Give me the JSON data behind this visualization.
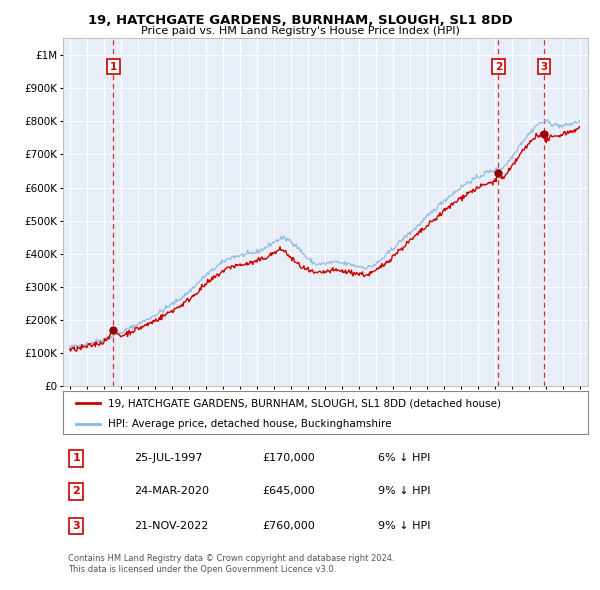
{
  "title": "19, HATCHGATE GARDENS, BURNHAM, SLOUGH, SL1 8DD",
  "subtitle": "Price paid vs. HM Land Registry's House Price Index (HPI)",
  "bg_color": "#e8eef8",
  "sale_dates_year": [
    1997.56,
    2020.23,
    2022.9
  ],
  "sale_prices": [
    170000,
    645000,
    760000
  ],
  "sale_labels": [
    "1",
    "2",
    "3"
  ],
  "footer_text": "Contains HM Land Registry data © Crown copyright and database right 2024.\nThis data is licensed under the Open Government Licence v3.0.",
  "legend_property": "19, HATCHGATE GARDENS, BURNHAM, SLOUGH, SL1 8DD (detached house)",
  "legend_hpi": "HPI: Average price, detached house, Buckinghamshire",
  "table_rows": [
    [
      "1",
      "25-JUL-1997",
      "£170,000",
      "6% ↓ HPI"
    ],
    [
      "2",
      "24-MAR-2020",
      "£645,000",
      "9% ↓ HPI"
    ],
    [
      "3",
      "21-NOV-2022",
      "£760,000",
      "9% ↓ HPI"
    ]
  ],
  "hpi_control_years": [
    1995,
    1995.5,
    1996,
    1996.5,
    1997,
    1997.5,
    1998,
    1998.5,
    1999,
    1999.5,
    2000,
    2000.5,
    2001,
    2001.5,
    2002,
    2002.5,
    2003,
    2003.5,
    2004,
    2004.5,
    2005,
    2005.5,
    2006,
    2006.5,
    2007,
    2007.5,
    2008,
    2008.5,
    2009,
    2009.5,
    2010,
    2010.5,
    2011,
    2011.5,
    2012,
    2012.5,
    2013,
    2013.5,
    2014,
    2014.5,
    2015,
    2015.5,
    2016,
    2016.5,
    2017,
    2017.5,
    2018,
    2018.5,
    2019,
    2019.5,
    2020,
    2020.5,
    2021,
    2021.5,
    2022,
    2022.5,
    2023,
    2023.5,
    2024,
    2024.5,
    2025
  ],
  "hpi_control_vals": [
    118000,
    122000,
    128000,
    135000,
    142000,
    152000,
    162000,
    175000,
    188000,
    200000,
    215000,
    230000,
    248000,
    265000,
    285000,
    310000,
    335000,
    355000,
    375000,
    390000,
    395000,
    398000,
    405000,
    418000,
    435000,
    448000,
    440000,
    415000,
    385000,
    368000,
    370000,
    375000,
    372000,
    368000,
    362000,
    358000,
    368000,
    390000,
    415000,
    440000,
    462000,
    485000,
    510000,
    535000,
    560000,
    580000,
    600000,
    618000,
    630000,
    645000,
    652000,
    660000,
    690000,
    730000,
    760000,
    790000,
    800000,
    790000,
    785000,
    792000,
    800000
  ],
  "prop_control_years": [
    1995,
    1995.5,
    1996,
    1996.5,
    1997,
    1997.56,
    1998,
    1998.5,
    1999,
    1999.5,
    2000,
    2000.5,
    2001,
    2001.5,
    2002,
    2002.5,
    2003,
    2003.5,
    2004,
    2004.5,
    2005,
    2005.5,
    2006,
    2006.5,
    2007,
    2007.5,
    2008,
    2008.5,
    2009,
    2009.5,
    2010,
    2010.5,
    2011,
    2011.5,
    2012,
    2012.5,
    2013,
    2013.5,
    2014,
    2014.5,
    2015,
    2015.5,
    2016,
    2016.5,
    2017,
    2017.5,
    2018,
    2018.5,
    2019,
    2019.5,
    2020,
    2020.23,
    2020.5,
    2021,
    2021.5,
    2022,
    2022.5,
    2022.9,
    2023,
    2023.5,
    2024,
    2024.5,
    2025
  ],
  "prop_control_vals": [
    110000,
    114000,
    120000,
    127000,
    134000,
    170000,
    152000,
    163000,
    174000,
    185000,
    198000,
    212000,
    228000,
    243000,
    262000,
    285000,
    308000,
    328000,
    348000,
    362000,
    366000,
    370000,
    377000,
    388000,
    402000,
    415000,
    388000,
    365000,
    350000,
    340000,
    345000,
    350000,
    348000,
    344000,
    340000,
    336000,
    348000,
    368000,
    392000,
    415000,
    438000,
    460000,
    482000,
    505000,
    528000,
    548000,
    568000,
    585000,
    598000,
    610000,
    618000,
    645000,
    625000,
    660000,
    700000,
    730000,
    760000,
    760000,
    745000,
    752000,
    762000,
    770000,
    778000
  ]
}
